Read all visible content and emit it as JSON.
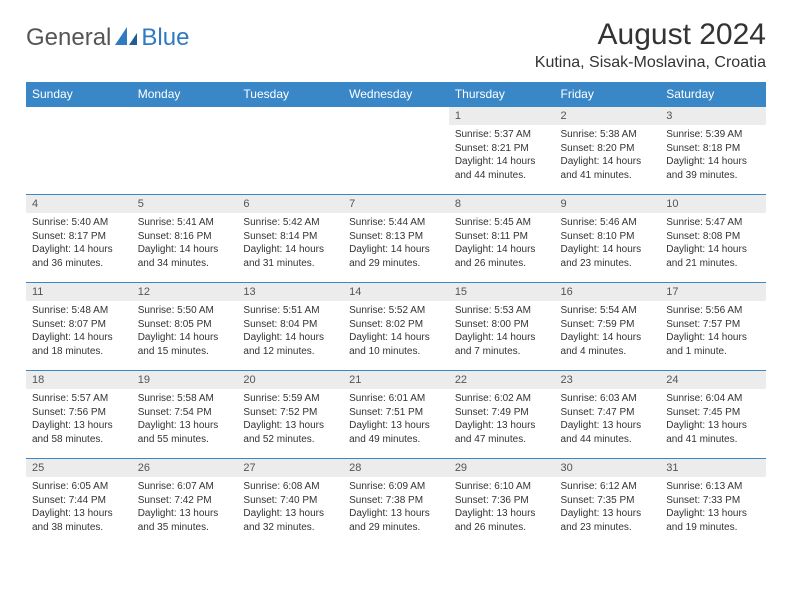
{
  "logo": {
    "part1": "General",
    "part2": "Blue"
  },
  "title": "August 2024",
  "location": "Kutina, Sisak-Moslavina, Croatia",
  "header_color": "#3a87c8",
  "daynum_bg": "#ececec",
  "border_color": "#3a87c8",
  "weekdays": [
    "Sunday",
    "Monday",
    "Tuesday",
    "Wednesday",
    "Thursday",
    "Friday",
    "Saturday"
  ],
  "weeks": [
    [
      null,
      null,
      null,
      null,
      {
        "d": "1",
        "sr": "5:37 AM",
        "ss": "8:21 PM",
        "dl": "14 hours and 44 minutes."
      },
      {
        "d": "2",
        "sr": "5:38 AM",
        "ss": "8:20 PM",
        "dl": "14 hours and 41 minutes."
      },
      {
        "d": "3",
        "sr": "5:39 AM",
        "ss": "8:18 PM",
        "dl": "14 hours and 39 minutes."
      }
    ],
    [
      {
        "d": "4",
        "sr": "5:40 AM",
        "ss": "8:17 PM",
        "dl": "14 hours and 36 minutes."
      },
      {
        "d": "5",
        "sr": "5:41 AM",
        "ss": "8:16 PM",
        "dl": "14 hours and 34 minutes."
      },
      {
        "d": "6",
        "sr": "5:42 AM",
        "ss": "8:14 PM",
        "dl": "14 hours and 31 minutes."
      },
      {
        "d": "7",
        "sr": "5:44 AM",
        "ss": "8:13 PM",
        "dl": "14 hours and 29 minutes."
      },
      {
        "d": "8",
        "sr": "5:45 AM",
        "ss": "8:11 PM",
        "dl": "14 hours and 26 minutes."
      },
      {
        "d": "9",
        "sr": "5:46 AM",
        "ss": "8:10 PM",
        "dl": "14 hours and 23 minutes."
      },
      {
        "d": "10",
        "sr": "5:47 AM",
        "ss": "8:08 PM",
        "dl": "14 hours and 21 minutes."
      }
    ],
    [
      {
        "d": "11",
        "sr": "5:48 AM",
        "ss": "8:07 PM",
        "dl": "14 hours and 18 minutes."
      },
      {
        "d": "12",
        "sr": "5:50 AM",
        "ss": "8:05 PM",
        "dl": "14 hours and 15 minutes."
      },
      {
        "d": "13",
        "sr": "5:51 AM",
        "ss": "8:04 PM",
        "dl": "14 hours and 12 minutes."
      },
      {
        "d": "14",
        "sr": "5:52 AM",
        "ss": "8:02 PM",
        "dl": "14 hours and 10 minutes."
      },
      {
        "d": "15",
        "sr": "5:53 AM",
        "ss": "8:00 PM",
        "dl": "14 hours and 7 minutes."
      },
      {
        "d": "16",
        "sr": "5:54 AM",
        "ss": "7:59 PM",
        "dl": "14 hours and 4 minutes."
      },
      {
        "d": "17",
        "sr": "5:56 AM",
        "ss": "7:57 PM",
        "dl": "14 hours and 1 minute."
      }
    ],
    [
      {
        "d": "18",
        "sr": "5:57 AM",
        "ss": "7:56 PM",
        "dl": "13 hours and 58 minutes."
      },
      {
        "d": "19",
        "sr": "5:58 AM",
        "ss": "7:54 PM",
        "dl": "13 hours and 55 minutes."
      },
      {
        "d": "20",
        "sr": "5:59 AM",
        "ss": "7:52 PM",
        "dl": "13 hours and 52 minutes."
      },
      {
        "d": "21",
        "sr": "6:01 AM",
        "ss": "7:51 PM",
        "dl": "13 hours and 49 minutes."
      },
      {
        "d": "22",
        "sr": "6:02 AM",
        "ss": "7:49 PM",
        "dl": "13 hours and 47 minutes."
      },
      {
        "d": "23",
        "sr": "6:03 AM",
        "ss": "7:47 PM",
        "dl": "13 hours and 44 minutes."
      },
      {
        "d": "24",
        "sr": "6:04 AM",
        "ss": "7:45 PM",
        "dl": "13 hours and 41 minutes."
      }
    ],
    [
      {
        "d": "25",
        "sr": "6:05 AM",
        "ss": "7:44 PM",
        "dl": "13 hours and 38 minutes."
      },
      {
        "d": "26",
        "sr": "6:07 AM",
        "ss": "7:42 PM",
        "dl": "13 hours and 35 minutes."
      },
      {
        "d": "27",
        "sr": "6:08 AM",
        "ss": "7:40 PM",
        "dl": "13 hours and 32 minutes."
      },
      {
        "d": "28",
        "sr": "6:09 AM",
        "ss": "7:38 PM",
        "dl": "13 hours and 29 minutes."
      },
      {
        "d": "29",
        "sr": "6:10 AM",
        "ss": "7:36 PM",
        "dl": "13 hours and 26 minutes."
      },
      {
        "d": "30",
        "sr": "6:12 AM",
        "ss": "7:35 PM",
        "dl": "13 hours and 23 minutes."
      },
      {
        "d": "31",
        "sr": "6:13 AM",
        "ss": "7:33 PM",
        "dl": "13 hours and 19 minutes."
      }
    ]
  ],
  "labels": {
    "sunrise": "Sunrise: ",
    "sunset": "Sunset: ",
    "daylight": "Daylight: "
  }
}
